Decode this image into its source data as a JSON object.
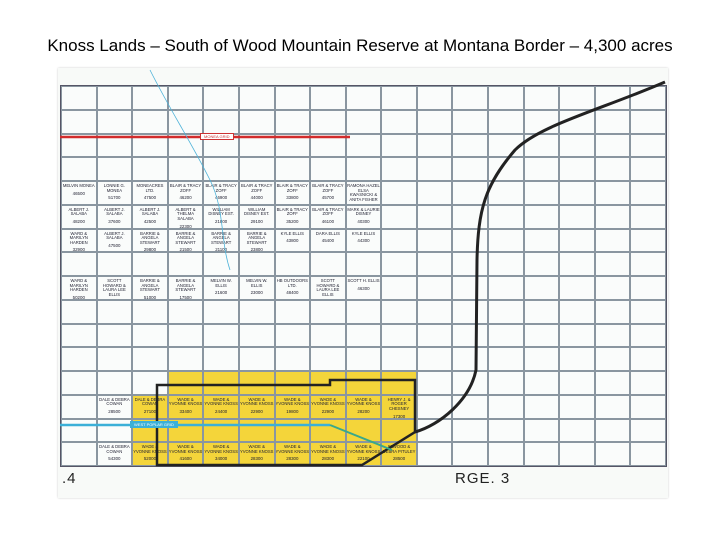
{
  "title": "Knoss Lands – South of Wood Mountain Reserve at Montana Border – 4,300 acres",
  "map": {
    "range_left": ".4",
    "range_right": "RGE. 3",
    "road_north": "MONEA GRID",
    "road_south": "WEST POPLAR GRID",
    "highlight_color": "#f4d53a",
    "highway_color": "#222222",
    "grid_road_color": "#d22b2b",
    "south_road_color": "#3bb0d8",
    "cells": [
      {
        "owner": "MELVIN MONEA",
        "value": "46500"
      },
      {
        "owner": "LONNIE G. MONEA",
        "value": "51700"
      },
      {
        "owner": "MONEACRES LTD.",
        "value": "47500"
      },
      {
        "owner": "BLAIR & TRACY ZOFF",
        "value": "46200"
      },
      {
        "owner": "BLAIR & TRACY ZOFF",
        "value": "46900"
      },
      {
        "owner": "BLAIR & TRACY ZOFF",
        "value": "44000"
      },
      {
        "owner": "BLAIR & TRACY ZOFF",
        "value": "33800"
      },
      {
        "owner": "BLAIR & TRACY ZOFF",
        "value": "45700"
      },
      {
        "owner": "RAMONA HAZEL ELSA KWASNICKI & ANITA FISHER",
        "value": "39500"
      },
      {
        "owner": "ALBERT J. SALABA",
        "value": "48200"
      },
      {
        "owner": "ALBERT J. SALABA",
        "value": "37600"
      },
      {
        "owner": "ALBERT J. SALABA",
        "value": "42500"
      },
      {
        "owner": "ALBERT & THELMA SALABA",
        "value": "22300"
      },
      {
        "owner": "WILLIAM DISNEY EST.",
        "value": "21800"
      },
      {
        "owner": "WILLIAM DISNEY EST.",
        "value": "29100"
      },
      {
        "owner": "BLAIR & TRACY ZOFF",
        "value": "35200"
      },
      {
        "owner": "BLAIR & TRACY ZOFF",
        "value": "46100"
      },
      {
        "owner": "MARK & LAURIE DISNEY",
        "value": "40300"
      },
      {
        "owner": "WARD & MARILYN HARDEN",
        "value": "32900"
      },
      {
        "owner": "ALBERT J. SALABA",
        "value": "47500"
      },
      {
        "owner": "BARRIE & ANGELA STEWART",
        "value": "29800"
      },
      {
        "owner": "BARRIE & ANGELA STEWART",
        "value": "21500"
      },
      {
        "owner": "BARRIE & ANGELA STEWART",
        "value": "21100"
      },
      {
        "owner": "BARRIE & ANGELA STEWART",
        "value": "23800"
      },
      {
        "owner": "KYLE ELLIS",
        "value": "43800"
      },
      {
        "owner": "DARA ELLIS",
        "value": "45400"
      },
      {
        "owner": "KYLE ELLIS",
        "value": "44300"
      },
      {
        "owner": "WARD & MARILYN HARDEN",
        "value": "50200"
      },
      {
        "owner": "SCOTT HOWARD & LAURA LEE ELLIS",
        "value": "49800"
      },
      {
        "owner": "BARRIE & ANGELA STEWART",
        "value": "51000"
      },
      {
        "owner": "BARRIE & ANGELA STEWART",
        "value": "17500"
      },
      {
        "owner": "MELVIN W. ELLIS",
        "value": "21600"
      },
      {
        "owner": "MELVIN W. ELLIS",
        "value": "23000"
      },
      {
        "owner": "HB OUTDOORS LTD.",
        "value": "48400"
      },
      {
        "owner": "SCOTT HOWARD & LAURA LEE ELLIS",
        "value": "48500"
      },
      {
        "owner": "SCOTT H. ELLIS",
        "value": "46300"
      },
      {
        "owner": "DALE & DEBRA COWAN",
        "value": "28500"
      },
      {
        "owner": "DALE & DEBRA COWAN",
        "value": "27100"
      },
      {
        "owner": "WADE & YVONNE KNOSS",
        "value": "33400"
      },
      {
        "owner": "WADE & YVONNE KNOSS",
        "value": "24400"
      },
      {
        "owner": "WADE & YVONNE KNOSS",
        "value": "22900"
      },
      {
        "owner": "WADE & YVONNE KNOSS",
        "value": "19800"
      },
      {
        "owner": "WADE & YVONNE KNOSS",
        "value": "22900"
      },
      {
        "owner": "WADE & YVONNE KNOSS",
        "value": "28200"
      },
      {
        "owner": "HENRY J. & ROGER CHESNEY",
        "value": "17300"
      },
      {
        "owner": "DALE & DEBRA COWAN",
        "value": "54300"
      },
      {
        "owner": "WADE & YVONNE KNOSS",
        "value": "52000"
      },
      {
        "owner": "WADE & YVONNE KNOSS",
        "value": "41600"
      },
      {
        "owner": "WADE & YVONNE KNOSS",
        "value": "34000"
      },
      {
        "owner": "WADE & YVONNE KNOSS",
        "value": "28300"
      },
      {
        "owner": "WADE & YVONNE KNOSS",
        "value": "28300"
      },
      {
        "owner": "WADE & YVONNE KNOSS",
        "value": "28300"
      },
      {
        "owner": "WADE & YVONNE KNOSS",
        "value": "22100"
      },
      {
        "owner": "ELWOOD & DEBRA PITULEY",
        "value": "28500"
      }
    ]
  }
}
